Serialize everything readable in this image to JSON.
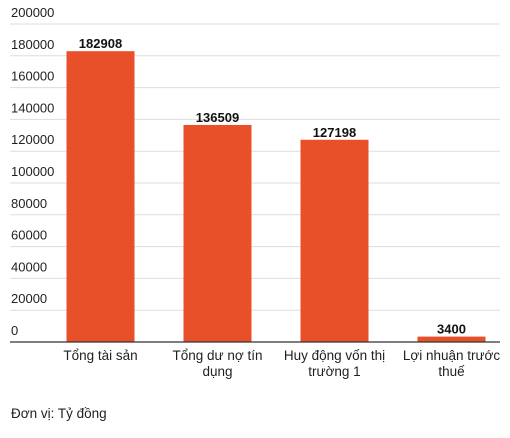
{
  "chart_data": {
    "type": "bar",
    "categories": [
      [
        "Tổng tài sản"
      ],
      [
        "Tổng dư nợ tín",
        "dụng"
      ],
      [
        "Huy động vốn thị",
        "trường 1"
      ],
      [
        "Lợi nhuận trước",
        "thuế"
      ]
    ],
    "values": [
      182908,
      136509,
      127198,
      3400
    ],
    "data_labels": [
      "182908",
      "136509",
      "127198",
      "3400"
    ],
    "y_ticks": [
      0,
      20000,
      40000,
      60000,
      80000,
      100000,
      120000,
      140000,
      160000,
      180000,
      200000
    ],
    "ylim": [
      0,
      200000
    ],
    "grid": true,
    "bar_color": "#e8502a",
    "note": "Đơn vị: Tỷ đồng"
  }
}
